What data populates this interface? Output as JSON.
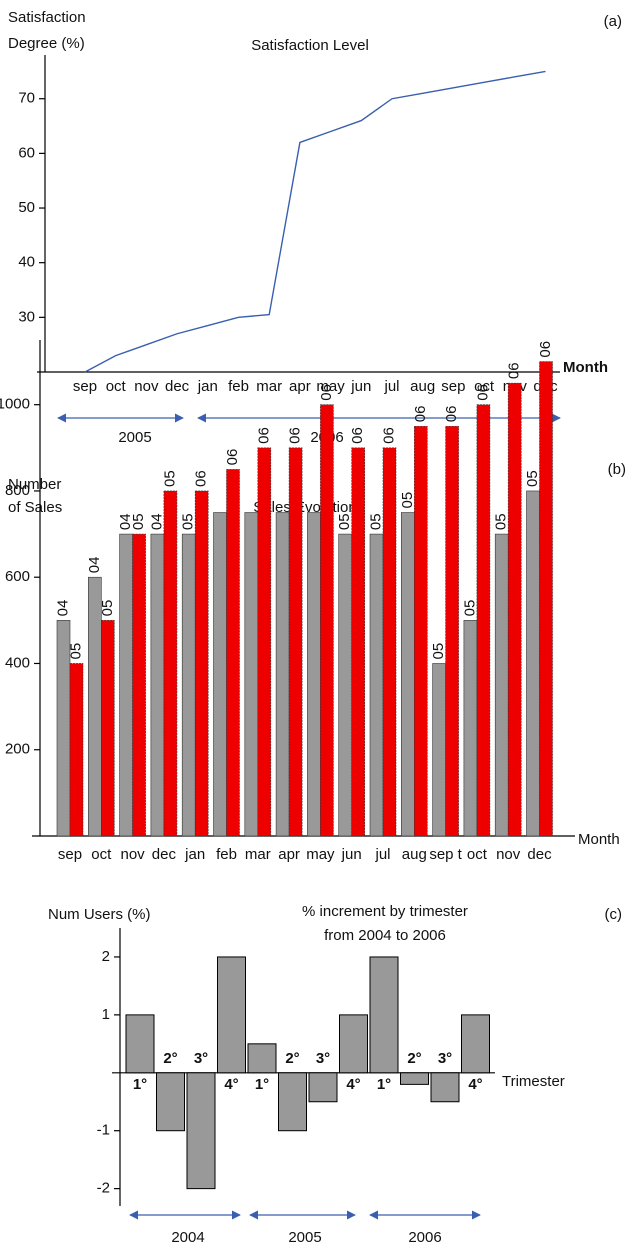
{
  "chart_data": [
    {
      "type": "line",
      "panel": "(a)",
      "title": "Satisfaction Level",
      "ylabel": [
        "Satisfaction",
        "Degree (%)"
      ],
      "xlabel": "Month",
      "categories": [
        "sep",
        "oct",
        "nov",
        "dec",
        "jan",
        "feb",
        "mar",
        "apr",
        "may",
        "jun",
        "jul",
        "aug",
        "sep",
        "oct",
        "nov",
        "dec"
      ],
      "values": [
        20,
        23,
        25,
        27,
        28.5,
        30,
        30.5,
        62,
        64,
        66,
        70,
        71,
        72,
        73,
        74,
        75
      ],
      "color": "#3a5fb0",
      "ylim": [
        20,
        78
      ],
      "yticks": [
        30,
        40,
        50,
        60,
        70
      ],
      "year_labels": [
        "2005",
        "2006"
      ]
    },
    {
      "type": "bar",
      "panel": "(b)",
      "title": "Sales Evolution",
      "ylabel": [
        "Number",
        "of Sales"
      ],
      "xlabel": "Month",
      "categories": [
        "sep",
        "oct",
        "nov",
        "dec",
        "jan",
        "feb",
        "mar",
        "apr",
        "may",
        "jun",
        "jul",
        "aug",
        "sep t",
        "oct",
        "nov",
        "dec"
      ],
      "series": [
        {
          "color": "#999999",
          "values": [
            500,
            600,
            700,
            700,
            700,
            750,
            750,
            750,
            750,
            700,
            700,
            750,
            400,
            500,
            700,
            800
          ],
          "labels": [
            "04",
            "04",
            "04",
            "04",
            "05",
            null,
            null,
            null,
            null,
            "05",
            "05",
            "05",
            "05",
            "05",
            "05",
            "05"
          ]
        },
        {
          "color": "#ee0000",
          "values": [
            400,
            500,
            700,
            800,
            800,
            850,
            900,
            900,
            1000,
            900,
            900,
            950,
            950,
            1000,
            1050,
            1100
          ],
          "labels": [
            "05",
            "05",
            "05",
            "05",
            "06",
            "06",
            "06",
            "06",
            "06",
            "06",
            "06",
            "06",
            "06",
            "06",
            "06",
            "06"
          ]
        }
      ],
      "ylim": [
        0,
        1150
      ],
      "yticks": [
        200,
        400,
        600,
        800,
        1000
      ]
    },
    {
      "type": "bar_signed",
      "panel": "(c)",
      "title": [
        "% increment by trimester",
        "from 2004 to 2006"
      ],
      "ylabel": "Num Users (%)",
      "xlabel": "Trimester",
      "categories": [
        "1°",
        "2°",
        "3°",
        "4°",
        "1°",
        "2°",
        "3°",
        "4°",
        "1°",
        "2°",
        "3°",
        "4°"
      ],
      "values": [
        1,
        -1,
        -2,
        2,
        0.5,
        -1,
        -0.5,
        1,
        2,
        -0.2,
        -0.5,
        1
      ],
      "color": "#999999",
      "ylim": [
        -2.3,
        2.5
      ],
      "yticks": [
        -2,
        -1,
        1,
        2
      ],
      "year_labels": [
        "2004",
        "2005",
        "2006"
      ]
    }
  ]
}
